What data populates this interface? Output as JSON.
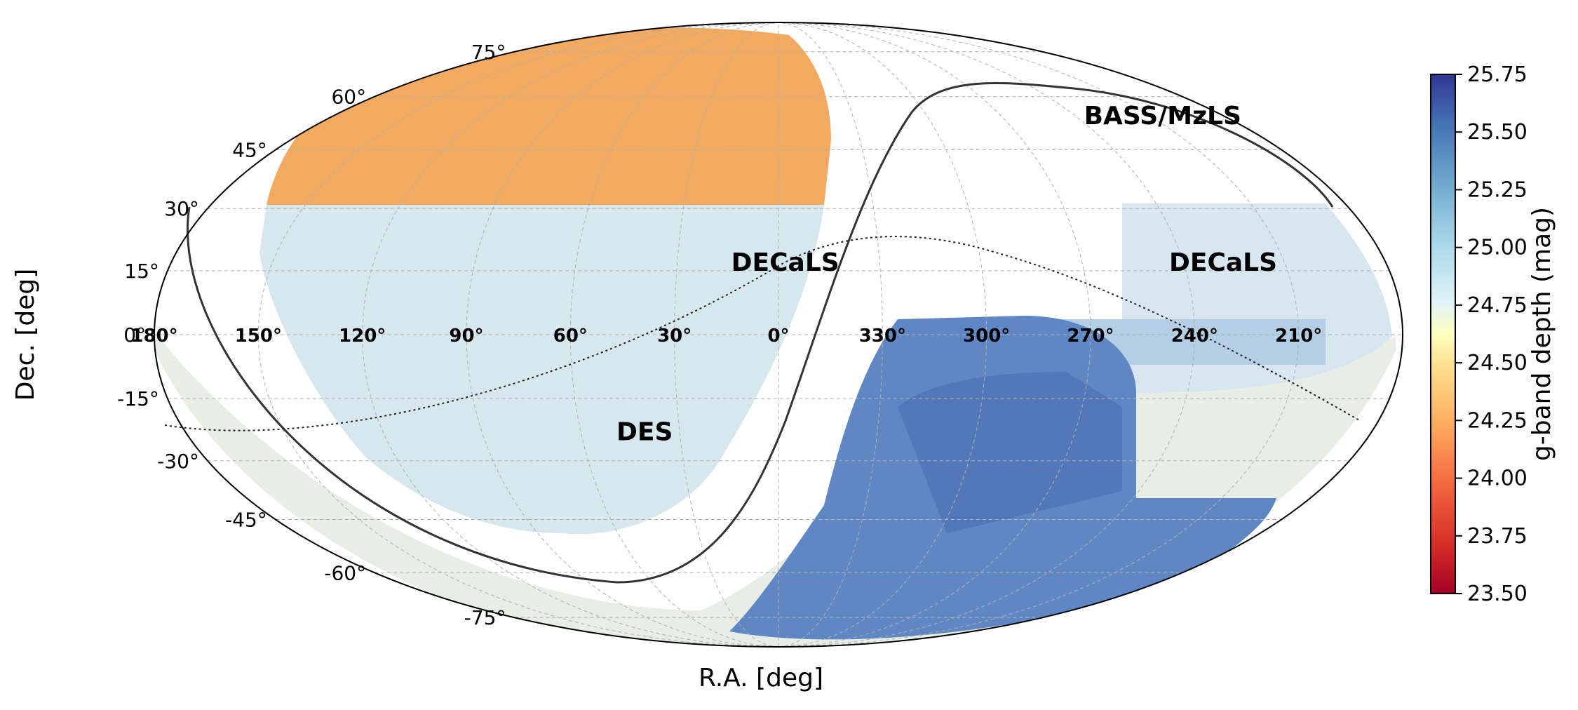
{
  "chart_data": {
    "type": "heatmap",
    "projection": "mollweide",
    "title": "",
    "xlabel": "R.A. [deg]",
    "ylabel": "Dec. [deg]",
    "dec_ticks": [
      75,
      60,
      45,
      30,
      15,
      0,
      -15,
      -30,
      -45,
      -60,
      -75
    ],
    "dec_tick_labels": [
      "75°",
      "60°",
      "45°",
      "30°",
      "15°",
      "0°",
      "-15°",
      "-30°",
      "-45°",
      "-60°",
      "-75°"
    ],
    "ra_ticks": [
      300,
      270,
      240,
      210,
      180,
      150,
      120,
      90,
      60,
      30,
      0,
      330
    ],
    "ra_tick_labels": [
      "300°",
      "270°",
      "240°",
      "210°",
      "180°",
      "150°",
      "120°",
      "90°",
      "60°",
      "30°",
      "0°",
      "330°"
    ],
    "ra_center": 0,
    "grid": true,
    "colorbar": {
      "label": "g-band depth (mag)",
      "range": [
        23.5,
        25.75
      ],
      "ticks": [
        25.75,
        25.5,
        25.25,
        25.0,
        24.75,
        24.5,
        24.25,
        24.0,
        23.75,
        23.5
      ],
      "tick_labels": [
        "25.75",
        "25.50",
        "25.25",
        "25.00",
        "24.75",
        "24.50",
        "24.25",
        "24.00",
        "23.75",
        "23.50"
      ],
      "colormap": "RdYlBu",
      "position": "right"
    },
    "regions": [
      {
        "name": "BASS/MzLS",
        "label_ra": 210,
        "label_dec": 52,
        "typical_depth": 24.1
      },
      {
        "name": "DECaLS",
        "label_ra": 229,
        "label_dec": 15,
        "typical_depth": 24.9
      },
      {
        "name": "DECaLS",
        "label_ra": 358,
        "label_dec": 15,
        "typical_depth": 25.0
      },
      {
        "name": "DES",
        "label_ra": 41,
        "label_dec": -25,
        "typical_depth": 25.5
      }
    ],
    "colors": {
      "low": "#a50026",
      "mid": "#ffffbf",
      "high": "#313695"
    }
  }
}
